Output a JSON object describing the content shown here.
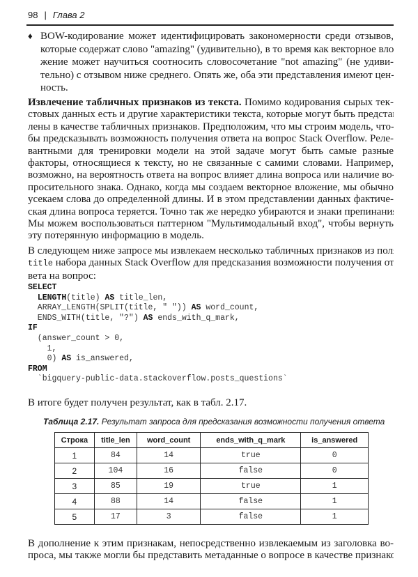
{
  "header": {
    "page_number": "98",
    "separator": "|",
    "chapter": "Глава 2"
  },
  "bullet_paragraph": {
    "lines": [
      "BOW-кодирование может идентифицировать закономерности среди отзывов,",
      "которые содержат слово \"amazing\" (удивительно), в то время как векторное вло-",
      "жение может научиться соотносить словосочетание \"not amazing\" (не удиви-",
      "тельно) с отзывом ниже среднего. Опять же, оба эти представления имеют цен-",
      "ность."
    ]
  },
  "section_paragraph": {
    "bold_lead": "Извлечение табличных признаков из текста.",
    "first_line_rest": " Помимо кодирования сырых тек-",
    "lines": [
      "стовых данных есть и другие характеристики текста, которые могут быть представ-",
      "лены в качестве табличных признаков. Предположим, что мы строим модель, что-",
      "бы предсказывать возможность получения ответа на вопрос Stack Overflow. Реле-",
      "вантными для тренировки модели на этой задаче могут быть самые разные",
      "факторы, относящиеся к тексту, но не связанные с самими словами. Например,",
      "возможно, на вероятность ответа на вопрос влияет длина вопроса или наличие во-",
      "просительного знака. Однако, когда мы создаем векторное вложение, мы обычно",
      "усекаем слова до определенной длины. И в этом представлении данных фактиче-",
      "ская длина вопроса теряется. Точно так же нередко убираются и знаки препинания.",
      "Мы можем воспользоваться паттерном \"Мультимодальный вход\", чтобы вернуть",
      "эту потерянную информацию в модель."
    ]
  },
  "query_intro": {
    "line1": "В следующем ниже запросе мы извлекаем несколько табличных признаков из поля",
    "code_word": "title",
    "line2_rest": " набора данных Stack Overflow для предсказания возможности получения от-",
    "line3": "вета на вопрос:"
  },
  "code": {
    "select": "SELECT",
    "l1a": "  ",
    "l1_kw": "LENGTH",
    "l1b": "(title) ",
    "l1_as": "AS",
    "l1c": " title_len,",
    "l2a": "  ARRAY_LENGTH(SPLIT(title, \" \")) ",
    "l2_as": "AS",
    "l2c": " word_count,",
    "l3a": "  ENDS_WITH(title, \"?\") ",
    "l3_as": "AS",
    "l3c": " ends_with_q_mark,",
    "if": "IF",
    "l5": "  (answer_count > 0,",
    "l6": "    1,",
    "l7a": "    0) ",
    "l7_as": "AS",
    "l7c": " is_answered,",
    "from": "FROM",
    "l9": "  `bigquery-public-data.stackoverflow.posts_questions`"
  },
  "result_line": "В итоге будет получен результат, как в табл. 2.17.",
  "table": {
    "caption_label": "Таблица 2.17.",
    "caption_text": " Результат запроса для предсказания возможности получения ответа",
    "headers": [
      "Строка",
      "title_len",
      "word_count",
      "ends_with_q_mark",
      "is_answered"
    ],
    "rows": [
      [
        "1",
        "84",
        "14",
        "true",
        "0"
      ],
      [
        "2",
        "104",
        "16",
        "false",
        "0"
      ],
      [
        "3",
        "85",
        "19",
        "true",
        "1"
      ],
      [
        "4",
        "88",
        "14",
        "false",
        "1"
      ],
      [
        "5",
        "17",
        "3",
        "false",
        "1"
      ]
    ]
  },
  "closing_paragraph": {
    "lines": [
      "В дополнение к этим признакам, непосредственно извлекаемым из заголовка во-",
      "проса, мы также могли бы представить метаданные о вопросе в качестве признаков."
    ]
  }
}
